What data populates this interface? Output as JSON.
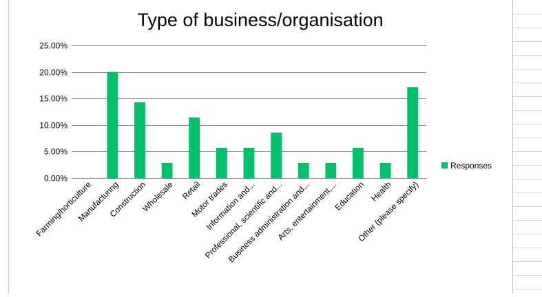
{
  "chart_data": {
    "type": "bar",
    "title": "Type of business/organisation",
    "xlabel": "",
    "ylabel": "",
    "categories": [
      "Farming/horticulture",
      "Manufacturing",
      "Construction",
      "Wholesale",
      "Retail",
      "Motor trades",
      "Information and...",
      "Professional, scientific and...",
      "Business administration and...",
      "Arts, entertainment,...",
      "Education",
      "Health",
      "Other (please specify)"
    ],
    "series": [
      {
        "name": "Responses",
        "color": "#00c06b",
        "values": [
          0,
          20.0,
          14.29,
          2.86,
          11.43,
          5.71,
          5.71,
          8.57,
          2.86,
          2.86,
          5.71,
          2.86,
          17.14
        ]
      }
    ],
    "ylim": [
      0,
      25
    ],
    "yticks": [
      "0.00%",
      "5.00%",
      "10.00%",
      "15.00%",
      "20.00%",
      "25.00%"
    ],
    "ytick_values": [
      0,
      5,
      10,
      15,
      20,
      25
    ],
    "grid": true,
    "legend_position": "right"
  }
}
